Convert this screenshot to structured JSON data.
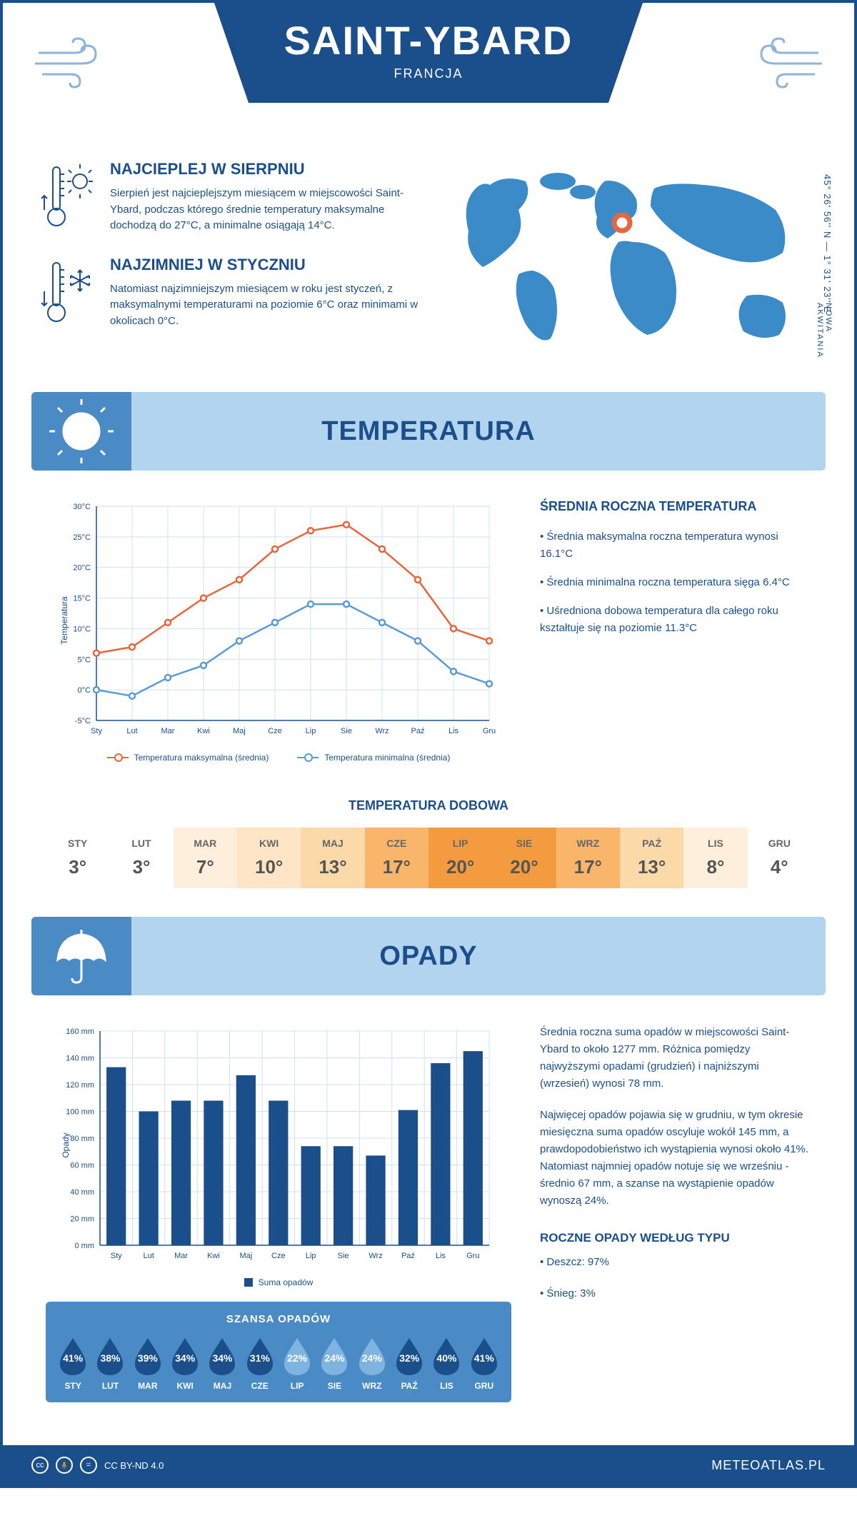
{
  "header": {
    "title": "SAINT-YBARD",
    "subtitle": "FRANCJA"
  },
  "coords": "45° 26' 56'' N — 1° 31' 23'' E",
  "region": "NOWA AKWITANIA",
  "warmest": {
    "title": "NAJCIEPLEJ W SIERPNIU",
    "text": "Sierpień jest najcieplejszym miesiącem w miejscowości Saint-Ybard, podczas którego średnie temperatury maksymalne dochodzą do 27°C, a minimalne osiągają 14°C."
  },
  "coldest": {
    "title": "NAJZIMNIEJ W STYCZNIU",
    "text": "Natomiast najzimniejszym miesiącem w roku jest styczeń, z maksymalnymi temperaturami na poziomie 6°C oraz minimami w okolicach 0°C."
  },
  "temperature": {
    "section_title": "TEMPERATURA",
    "chart": {
      "type": "line",
      "months": [
        "Sty",
        "Lut",
        "Mar",
        "Kwi",
        "Maj",
        "Cze",
        "Lip",
        "Sie",
        "Wrz",
        "Paź",
        "Lis",
        "Gru"
      ],
      "max_series": [
        6,
        7,
        11,
        15,
        18,
        23,
        26,
        27,
        23,
        18,
        10,
        8
      ],
      "min_series": [
        0,
        -1,
        2,
        4,
        8,
        11,
        14,
        14,
        11,
        8,
        3,
        1
      ],
      "max_color": "#e8663c",
      "min_color": "#5a9bd5",
      "ylim": [
        -5,
        30
      ],
      "ytick_step": 5,
      "ylabel": "Temperatura",
      "grid_color": "#d0e0f0",
      "axis_color": "#1a4f8b",
      "y_unit": "°C"
    },
    "legend_max": "Temperatura maksymalna (średnia)",
    "legend_min": "Temperatura minimalna (średnia)",
    "info_title": "ŚREDNIA ROCZNA TEMPERATURA",
    "info_1": "• Średnia maksymalna roczna temperatura wynosi 16.1°C",
    "info_2": "• Średnia minimalna roczna temperatura sięga 6.4°C",
    "info_3": "• Uśredniona dobowa temperatura dla całego roku kształtuje się na poziomie 11.3°C"
  },
  "daily_temp": {
    "title": "TEMPERATURA DOBOWA",
    "months": [
      "STY",
      "LUT",
      "MAR",
      "KWI",
      "MAJ",
      "CZE",
      "LIP",
      "SIE",
      "WRZ",
      "PAŹ",
      "LIS",
      "GRU"
    ],
    "values": [
      "3°",
      "3°",
      "7°",
      "10°",
      "13°",
      "17°",
      "20°",
      "20°",
      "17°",
      "13°",
      "8°",
      "4°"
    ],
    "bg_colors": [
      "#ffffff",
      "#ffffff",
      "#fdefdc",
      "#fde5c5",
      "#fcd9a8",
      "#f9b56a",
      "#f49b3f",
      "#f49b3f",
      "#f9b56a",
      "#fcd9a8",
      "#fdefdc",
      "#ffffff"
    ]
  },
  "precip": {
    "section_title": "OPADY",
    "chart": {
      "type": "bar",
      "months": [
        "Sty",
        "Lut",
        "Mar",
        "Kwi",
        "Maj",
        "Cze",
        "Lip",
        "Sie",
        "Wrz",
        "Paź",
        "Lis",
        "Gru"
      ],
      "values": [
        133,
        100,
        108,
        108,
        127,
        108,
        74,
        74,
        67,
        101,
        136,
        145
      ],
      "bar_color": "#1a4f8b",
      "ylim": [
        0,
        160
      ],
      "ytick_step": 20,
      "ylabel": "Opady",
      "y_unit": " mm",
      "grid_color": "#d0e0f0",
      "axis_color": "#1a4f8b"
    },
    "legend": "Suma opadów",
    "info_1": "Średnia roczna suma opadów w miejscowości Saint-Ybard to około 1277 mm. Różnica pomiędzy najwyższymi opadami (grudzień) i najniższymi (wrzesień) wynosi 78 mm.",
    "info_2": "Najwięcej opadów pojawia się w grudniu, w tym okresie miesięczna suma opadów oscyluje wokół 145 mm, a prawdopodobieństwo ich wystąpienia wynosi około 41%. Natomiast najmniej opadów notuje się we wrześniu - średnio 67 mm, a szanse na wystąpienie opadów wynoszą 24%.",
    "type_title": "ROCZNE OPADY WEDŁUG TYPU",
    "type_1": "• Deszcz: 97%",
    "type_2": "• Śnieg: 3%"
  },
  "chance": {
    "title": "SZANSA OPADÓW",
    "months": [
      "STY",
      "LUT",
      "MAR",
      "KWI",
      "MAJ",
      "CZE",
      "LIP",
      "SIE",
      "WRZ",
      "PAŹ",
      "LIS",
      "GRU"
    ],
    "values": [
      "41%",
      "38%",
      "39%",
      "34%",
      "34%",
      "31%",
      "22%",
      "24%",
      "24%",
      "32%",
      "40%",
      "41%"
    ],
    "drop_colors": [
      "#1a4f8b",
      "#1a4f8b",
      "#1a4f8b",
      "#1a4f8b",
      "#1a4f8b",
      "#1a4f8b",
      "#7fb3e0",
      "#7fb3e0",
      "#7fb3e0",
      "#1a4f8b",
      "#1a4f8b",
      "#1a4f8b"
    ]
  },
  "footer": {
    "license": "CC BY-ND 4.0",
    "site": "METEOATLAS.PL"
  }
}
